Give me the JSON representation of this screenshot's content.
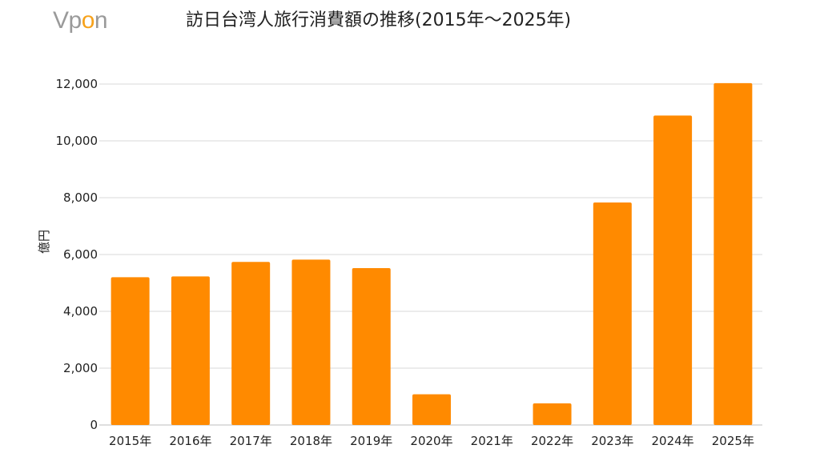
{
  "logo": {
    "text_v": "Vp",
    "text_o": "o",
    "text_n": "n"
  },
  "colors": {
    "bar": "#ff8a00",
    "grid": "#d9d9d9",
    "text": "#222222",
    "logo_gray": "#9a9a9a",
    "logo_orange": "#f7a21b"
  },
  "chart_data": {
    "type": "bar",
    "title": "訪日台湾人旅行消費額の推移(2015年～2025年)",
    "xlabel": "",
    "ylabel": "億円",
    "categories": [
      "2015年",
      "2016年",
      "2017年",
      "2018年",
      "2019年",
      "2020年",
      "2021年",
      "2022年",
      "2023年",
      "2024年",
      "2025年"
    ],
    "series": [
      {
        "values": [
          5200,
          5230,
          5740,
          5820,
          5520,
          1080,
          0,
          760,
          7830,
          10890,
          12030
        ]
      }
    ],
    "ylim": [
      0,
      12000
    ],
    "yticks": [
      0,
      2000,
      4000,
      6000,
      8000,
      10000,
      12000
    ],
    "ytick_labels": [
      "0",
      "2,000",
      "4,000",
      "6,000",
      "8,000",
      "10,000",
      "12,000"
    ],
    "grid": true,
    "legend": "none"
  }
}
